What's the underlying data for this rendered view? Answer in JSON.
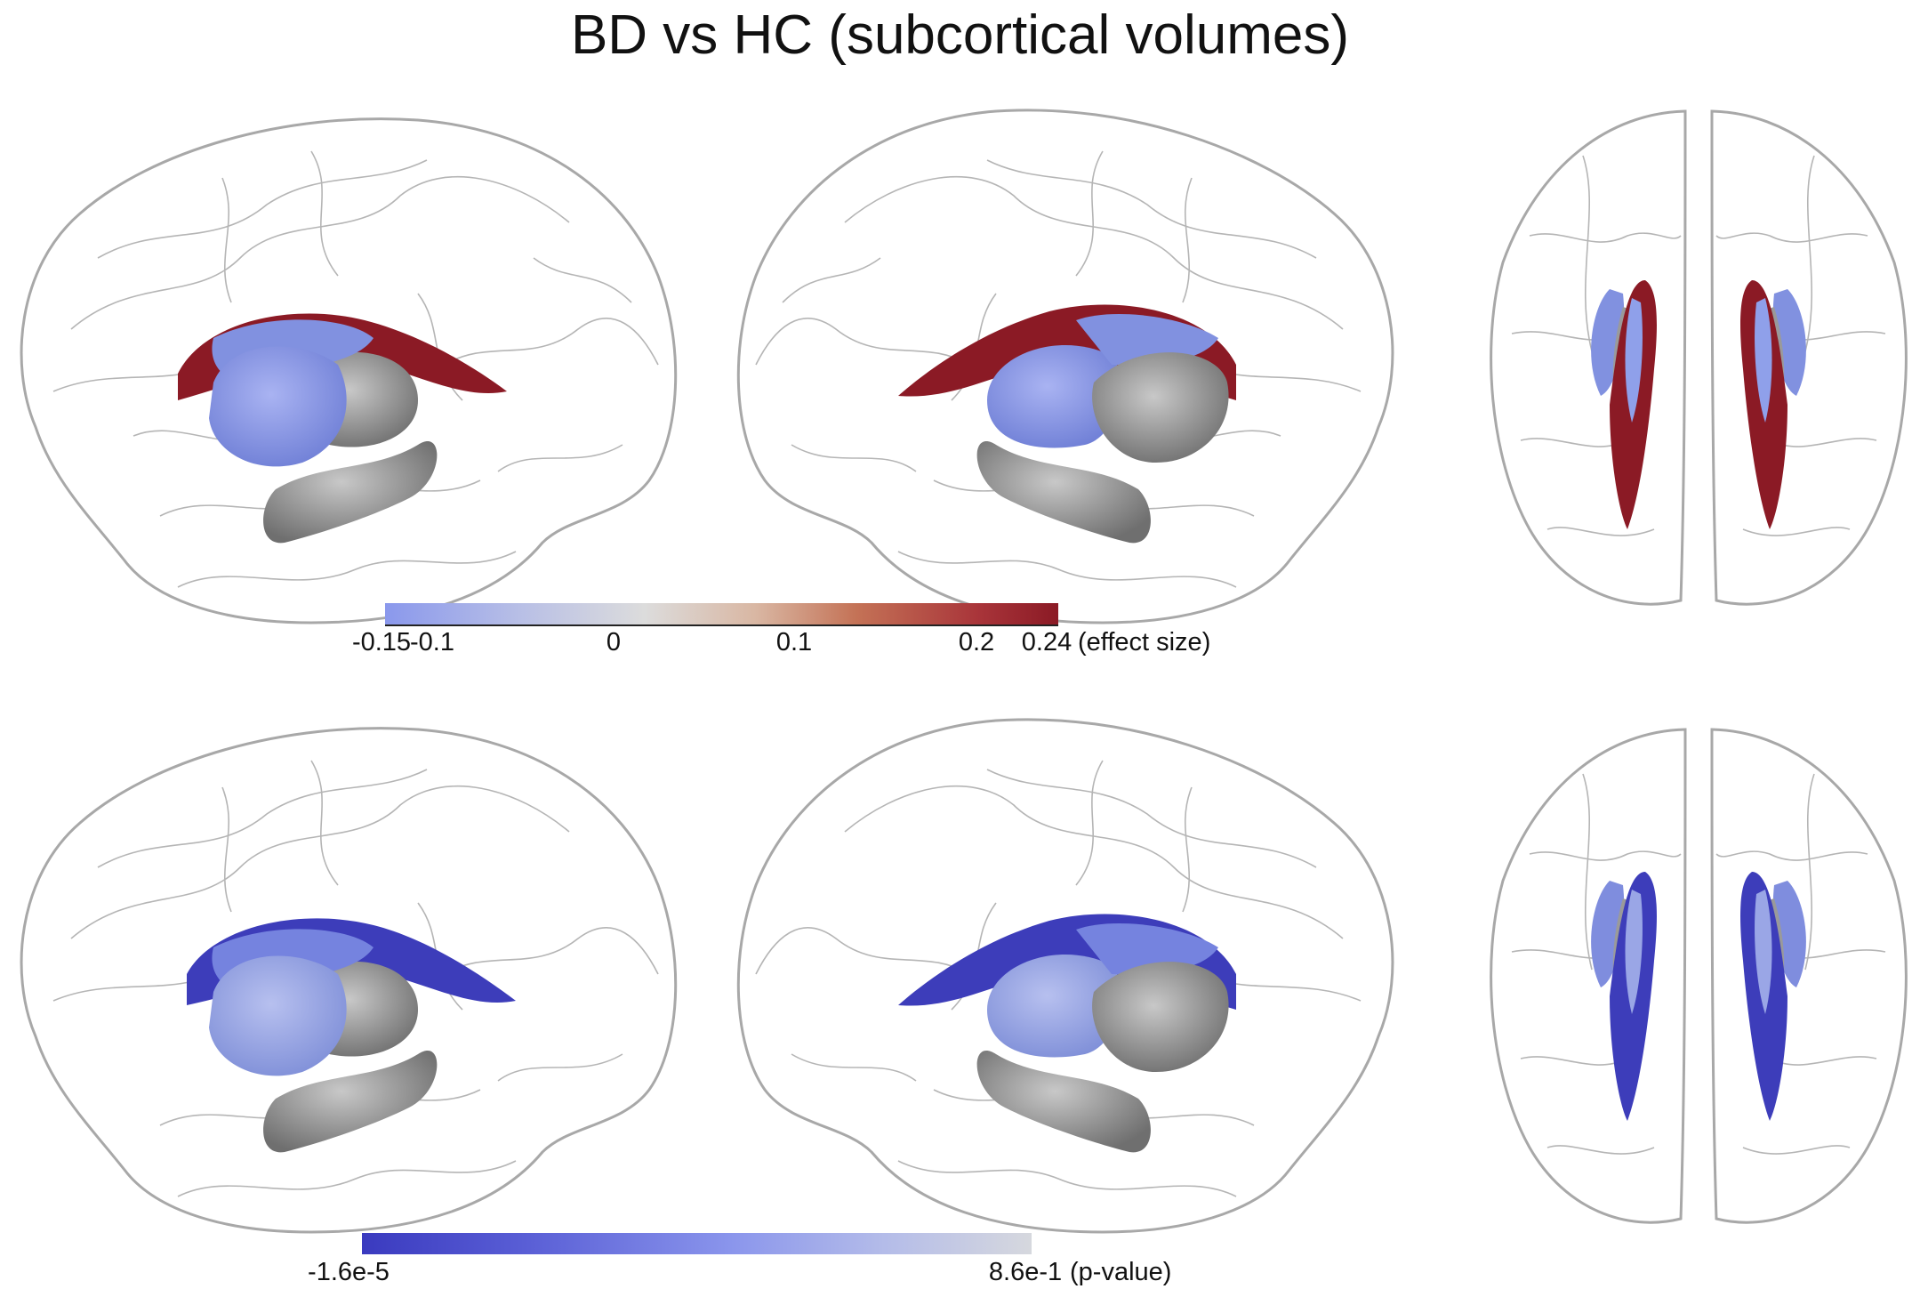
{
  "title": "BD vs HC (subcortical volumes)",
  "colors": {
    "effect_low": "#8a98ec",
    "effect_mid": "#dcdcdc",
    "effect_high": "#8b1a25",
    "pvalue_low": "#3a3abf",
    "pvalue_high": "#d6d8de",
    "structure_gray": "#8e8e8e",
    "cortex_line": "#9a9a9a"
  },
  "rows": [
    {
      "measure": "effect size",
      "views": [
        "lateral-left",
        "lateral-right",
        "superior"
      ],
      "colorbar": {
        "min": -0.15,
        "max": 0.24,
        "ticks": [
          {
            "label": "-0.15",
            "value": -0.15
          },
          {
            "label": "-0.1",
            "value": -0.1
          },
          {
            "label": "0",
            "value": 0
          },
          {
            "label": "0.1",
            "value": 0.1
          },
          {
            "label": "0.2",
            "value": 0.2
          },
          {
            "label": "0.24",
            "value": 0.24
          }
        ],
        "unit_label": "(effect size)"
      }
    },
    {
      "measure": "p-value",
      "views": [
        "lateral-left",
        "lateral-right",
        "superior"
      ],
      "colorbar": {
        "min_label": "-1.6e-5",
        "max_label": "8.6e-1",
        "unit_label": "(p-value)"
      }
    }
  ]
}
